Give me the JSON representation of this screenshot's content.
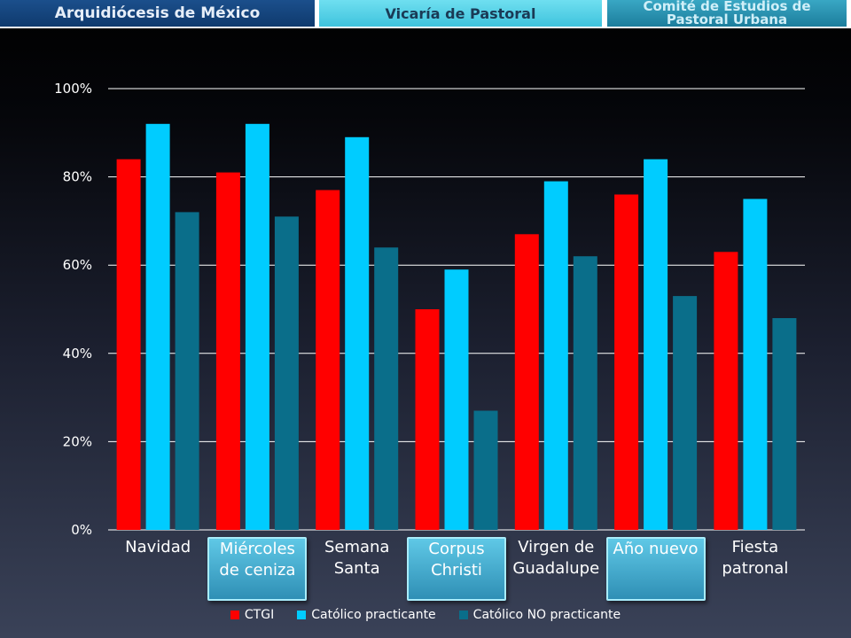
{
  "header": {
    "tab1": "Arquidiócesis de México",
    "tab2": "Vicaría de Pastoral",
    "tab3_line1": "Comité de Estudios de",
    "tab3_line2": "Pastoral Urbana"
  },
  "colors": {
    "CTGI": "#ff0000",
    "practicante": "#00ccff",
    "no_practicante": "#0a6e8a"
  },
  "chart_data": {
    "type": "bar",
    "title": "",
    "xlabel": "",
    "ylabel": "",
    "ylim": [
      0,
      100
    ],
    "yticks": [
      "0%",
      "20%",
      "40%",
      "60%",
      "80%",
      "100%"
    ],
    "grid": true,
    "legend_position": "bottom",
    "categories": [
      "Navidad",
      "Miércoles de ceniza",
      "Semana Santa",
      "Corpus Christi",
      "Virgen de Guadalupe",
      "Año nuevo",
      "Fiesta patronal"
    ],
    "category_lines": [
      [
        "Navidad"
      ],
      [
        "Miércoles",
        "de ceniza"
      ],
      [
        "Semana",
        "Santa"
      ],
      [
        "Corpus",
        "Christi"
      ],
      [
        "Virgen de",
        "Guadalupe"
      ],
      [
        "Año nuevo"
      ],
      [
        "Fiesta",
        "patronal"
      ]
    ],
    "highlighted_categories": [
      "Miércoles de ceniza",
      "Corpus Christi",
      "Año nuevo"
    ],
    "series": [
      {
        "name": "CTGI",
        "values": [
          84,
          81,
          77,
          50,
          67,
          76,
          63
        ]
      },
      {
        "name": "Católico practicante",
        "values": [
          92,
          92,
          89,
          59,
          79,
          84,
          75
        ]
      },
      {
        "name": "Católico NO practicante",
        "values": [
          72,
          71,
          64,
          27,
          62,
          53,
          48
        ]
      }
    ]
  }
}
